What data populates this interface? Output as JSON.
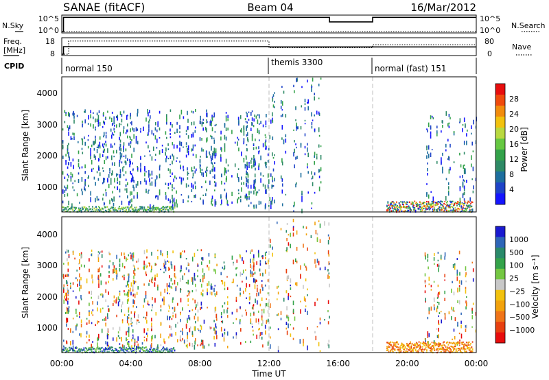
{
  "header": {
    "station": "SANAE (fitACF)",
    "beam": "Beam 04",
    "date": "16/Mar/2012"
  },
  "sky_panel": {
    "left_label": "N.Sky",
    "left_ticks": [
      "10^5",
      "10^0"
    ],
    "right_label": "N.Search",
    "right_ticks": [
      "10^5",
      "10^0"
    ]
  },
  "freq_panel": {
    "left_label_1": "Freq.",
    "left_label_2": "[MHz]",
    "left_ticks": [
      "18",
      "8"
    ],
    "right_label": "Nave",
    "right_ticks": [
      "80",
      "0"
    ]
  },
  "cpid": {
    "label": "CPID",
    "modes": [
      "normal 150",
      "themis 3300",
      "normal (fast) 151"
    ]
  },
  "x_axis": {
    "label": "Time UT",
    "ticks": [
      "00:00",
      "04:00",
      "08:00",
      "12:00",
      "16:00",
      "20:00",
      "00:00"
    ]
  },
  "power_panel": {
    "ylabel": "Slant Range [km]",
    "yticks": [
      "4000",
      "3000",
      "2000",
      "1000"
    ],
    "colorbar_label": "Power [dB]",
    "colorbar_ticks": [
      "28",
      "24",
      "20",
      "16",
      "12",
      "8",
      "4"
    ]
  },
  "velocity_panel": {
    "ylabel": "Slant Range [km]",
    "yticks": [
      "4000",
      "3000",
      "2000",
      "1000"
    ],
    "colorbar_label": "Velocity [m s⁻¹]",
    "colorbar_ticks": [
      "1000",
      "500",
      "100",
      "25",
      "−25",
      "−100",
      "−500",
      "−1000"
    ]
  },
  "chart_data": [
    {
      "type": "line",
      "title": "N.Sky / N.Search",
      "x_unit": "hours UT",
      "xlim": [
        0,
        24
      ],
      "ylim_log10": [
        0,
        5
      ],
      "series": [
        {
          "name": "N.Sky",
          "x": [
            0,
            0.1,
            0.1,
            12,
            15.5,
            15.5,
            18,
            18,
            24
          ],
          "y_log10": [
            0,
            0,
            4.7,
            4.7,
            4.7,
            3.2,
            3.2,
            4.7,
            4.7
          ]
        },
        {
          "name": "N.Search",
          "x": [
            0,
            24
          ],
          "y_log10": [
            0,
            0
          ]
        }
      ]
    },
    {
      "type": "line",
      "title": "Freq. / Nave",
      "x_unit": "hours UT",
      "xlim": [
        0,
        24
      ],
      "freq_ylim": [
        8,
        18
      ],
      "nave_ylim": [
        0,
        80
      ],
      "series": [
        {
          "name": "Freq.",
          "x": [
            0,
            0.1,
            0.1,
            12,
            12,
            24
          ],
          "y": [
            8,
            8,
            13,
            13,
            12.8,
            12.8
          ]
        },
        {
          "name": "Nave",
          "x": [
            0,
            0.4,
            0.4,
            12,
            12,
            18,
            18,
            24
          ],
          "y": [
            0,
            0,
            70,
            70,
            35,
            35,
            50,
            50
          ]
        }
      ]
    },
    {
      "type": "heatmap",
      "title": "Power",
      "x_unit": "hours UT",
      "xlim": [
        0,
        24
      ],
      "ylabel": "Slant Range [km]",
      "ylim": [
        180,
        4600
      ],
      "colorbar_label": "Power [dB]",
      "colorbar_range": [
        0,
        32
      ],
      "mode_boundaries": [
        12,
        18
      ],
      "ground_scatter_band": [
        {
          "start": 0,
          "end": 6.5
        },
        {
          "start": 18.8,
          "end": 23.8
        }
      ]
    },
    {
      "type": "heatmap",
      "title": "Velocity",
      "x_unit": "hours UT",
      "xlim": [
        0,
        24
      ],
      "ylabel": "Slant Range [km]",
      "ylim": [
        180,
        4600
      ],
      "colorbar_label": "Velocity [m s^-1]",
      "colorbar_range": [
        -1000,
        1000
      ],
      "mode_boundaries": [
        12,
        18
      ],
      "ground_scatter_band": [
        {
          "start": 0,
          "end": 6.5
        },
        {
          "start": 18.8,
          "end": 23.8
        }
      ]
    }
  ],
  "colors": {
    "power_scale": [
      "#1515ff",
      "#1e44c8",
      "#1d6e9e",
      "#2e8a66",
      "#33a24a",
      "#66c842",
      "#b9d940",
      "#f2c20e",
      "#f28c0c",
      "#f04a0c",
      "#e80d0d"
    ],
    "velocity_scale": [
      "#1a1ad0",
      "#2e66b8",
      "#2a8a6a",
      "#34a34a",
      "#74c742",
      "#c8c8c8",
      "#f2c20e",
      "#f2a20c",
      "#f07418",
      "#e84010",
      "#e80d0d"
    ],
    "ground_scatter": "#8a8a8a"
  }
}
